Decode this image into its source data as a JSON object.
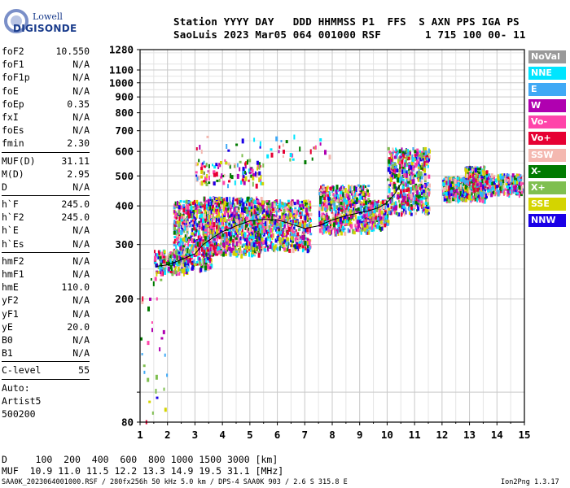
{
  "logo": {
    "line1": "Lowell",
    "line2": "DIGISONDE"
  },
  "header": {
    "line1": "Station YYYY DAY   DDD HHMMSS P1  FFS  S AXN PPS IGA PS",
    "line2": "SaoLuis 2023 Mar05 064 001000 RSF       1 715 100 00- 11"
  },
  "params": [
    {
      "label": "foF2",
      "value": "10.550"
    },
    {
      "label": "foF1",
      "value": "N/A"
    },
    {
      "label": "foF1p",
      "value": "N/A"
    },
    {
      "label": "foE",
      "value": "N/A"
    },
    {
      "label": "foEp",
      "value": "0.35"
    },
    {
      "label": "fxI",
      "value": "N/A"
    },
    {
      "label": "foEs",
      "value": "N/A"
    },
    {
      "label": "fmin",
      "value": "2.30"
    },
    {
      "label": "MUF(D)",
      "value": "31.11"
    },
    {
      "label": "M(D)",
      "value": "2.95"
    },
    {
      "label": "D",
      "value": "N/A"
    },
    {
      "label": "h`F",
      "value": "245.0"
    },
    {
      "label": "h`F2",
      "value": "245.0"
    },
    {
      "label": "h`E",
      "value": "N/A"
    },
    {
      "label": "h`Es",
      "value": "N/A"
    },
    {
      "label": "hmF2",
      "value": "N/A"
    },
    {
      "label": "hmF1",
      "value": "N/A"
    },
    {
      "label": "hmE",
      "value": "110.0"
    },
    {
      "label": "yF2",
      "value": "N/A"
    },
    {
      "label": "yF1",
      "value": "N/A"
    },
    {
      "label": "yE",
      "value": "20.0"
    },
    {
      "label": "B0",
      "value": "N/A"
    },
    {
      "label": "B1",
      "value": "N/A"
    },
    {
      "label": "C-level",
      "value": "55"
    }
  ],
  "auto": {
    "line1": "Auto:",
    "line2": "Artist5",
    "line3": "500200"
  },
  "legend": [
    {
      "label": "NoVal",
      "color": "#999999"
    },
    {
      "label": "NNE",
      "color": "#00e5ff"
    },
    {
      "label": "E",
      "color": "#3fa9f5"
    },
    {
      "label": "W",
      "color": "#b000b0"
    },
    {
      "label": "Vo-",
      "color": "#ff44aa"
    },
    {
      "label": "Vo+",
      "color": "#e60033"
    },
    {
      "label": "SSW",
      "color": "#f4b8b0"
    },
    {
      "label": "X-",
      "color": "#007a00"
    },
    {
      "label": "X+",
      "color": "#7fbf50"
    },
    {
      "label": "SSE",
      "color": "#d4d400"
    },
    {
      "label": "NNW",
      "color": "#1a00e6"
    }
  ],
  "footer": {
    "line1": "D     100  200  400  600  800 1000 1500 3000 [km]",
    "line2": "MUF  10.9 11.0 11.5 12.2 13.3 14.9 19.5 31.1 [MHz]",
    "line3_left": "SAA0K_2023064001000.RSF / 280fx256h 50 kHz 5.0 km / DPS-4 SAA0K 903 / 2.6 S 315.8 E",
    "line3_right": "Ion2Png 1.3.17"
  },
  "chart_data": {
    "type": "scatter",
    "title": "",
    "xlabel": "",
    "ylabel": "",
    "xlim": [
      1,
      15
    ],
    "ylim": [
      80,
      1280
    ],
    "yscale": "log",
    "grid": true,
    "x_ticks": [
      1,
      2,
      3,
      4,
      5,
      6,
      7,
      8,
      9,
      10,
      11,
      12,
      13,
      14,
      15
    ],
    "y_ticks": [
      80,
      100,
      200,
      300,
      400,
      500,
      600,
      700,
      800,
      900,
      1000,
      1100,
      1280
    ],
    "y_tick_labels": [
      "80",
      "",
      "200",
      "300",
      "400",
      "500",
      "600",
      "700",
      "800",
      "900",
      "1000",
      "1100",
      "1280"
    ],
    "trace_line": {
      "x": [
        1.6,
        2.0,
        2.5,
        3.0,
        3.3,
        3.7,
        4.0,
        4.5,
        5.0,
        5.5,
        6.0,
        6.5,
        7.0,
        7.5,
        8.0,
        8.5,
        9.0,
        9.3,
        9.7,
        10.0,
        10.3,
        10.55
      ],
      "y": [
        255,
        258,
        268,
        280,
        300,
        318,
        330,
        345,
        358,
        362,
        360,
        350,
        338,
        345,
        360,
        372,
        380,
        385,
        395,
        410,
        440,
        480
      ]
    },
    "echo_clusters": [
      {
        "x": [
          1.5,
          2.7
        ],
        "y": [
          245,
          290
        ],
        "weight": 0.5
      },
      {
        "x": [
          2.2,
          3.6
        ],
        "y": [
          250,
          420
        ],
        "weight": 1.6
      },
      {
        "x": [
          3.3,
          5.4
        ],
        "y": [
          280,
          430
        ],
        "weight": 2.4
      },
      {
        "x": [
          5.0,
          7.2
        ],
        "y": [
          290,
          420
        ],
        "weight": 1.8
      },
      {
        "x": [
          7.5,
          9.3
        ],
        "y": [
          330,
          470
        ],
        "weight": 1.5
      },
      {
        "x": [
          9.1,
          10.0
        ],
        "y": [
          340,
          420
        ],
        "weight": 0.6
      },
      {
        "x": [
          10.0,
          11.5
        ],
        "y": [
          380,
          620
        ],
        "weight": 1.5
      },
      {
        "x": [
          12.0,
          12.8
        ],
        "y": [
          420,
          500
        ],
        "weight": 0.7
      },
      {
        "x": [
          12.8,
          13.6
        ],
        "y": [
          420,
          540
        ],
        "weight": 0.9
      },
      {
        "x": [
          13.6,
          14.9
        ],
        "y": [
          440,
          510
        ],
        "weight": 0.7
      },
      {
        "x": [
          3.0,
          5.5
        ],
        "y": [
          470,
          560
        ],
        "weight": 0.3
      },
      {
        "x": [
          3.0,
          8.0
        ],
        "y": [
          550,
          680
        ],
        "weight": 0.12
      },
      {
        "x": [
          1.0,
          2.0
        ],
        "y": [
          80,
          260
        ],
        "weight": 0.08
      }
    ]
  }
}
